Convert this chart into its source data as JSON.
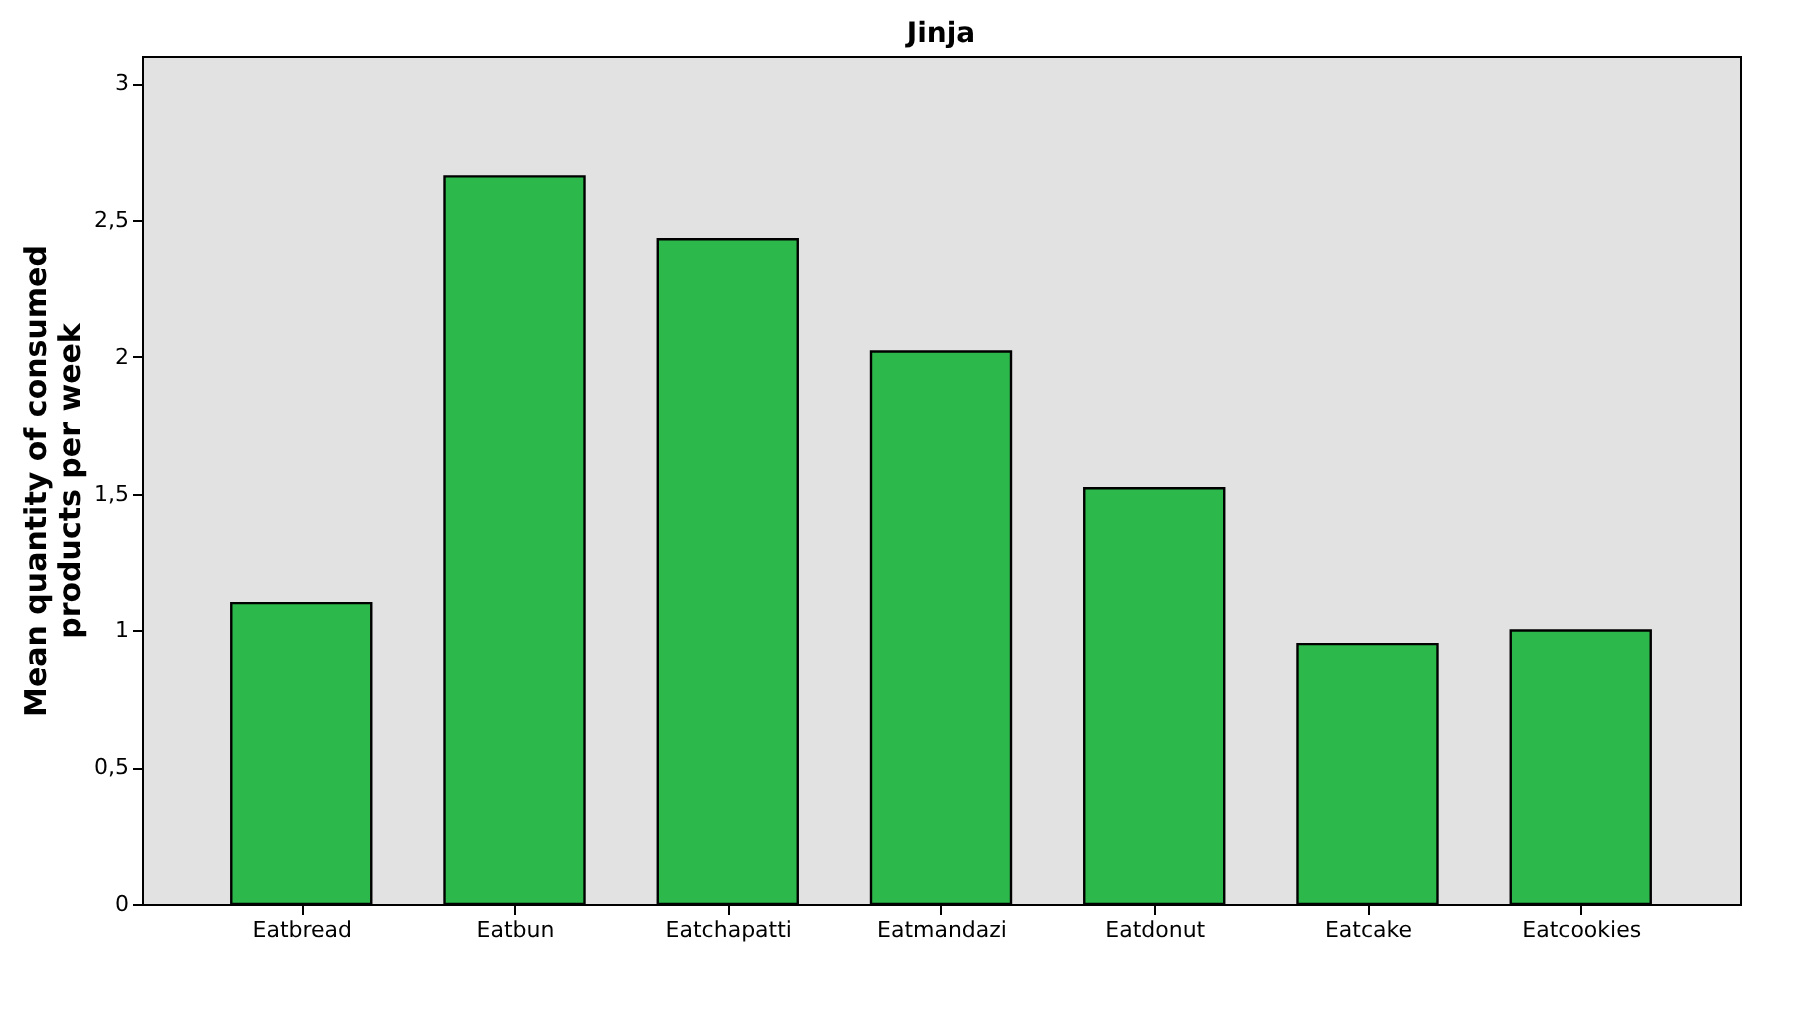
{
  "chart_data": {
    "type": "bar",
    "title": "Jinja",
    "ylabel": "Mean quantity of consumed products per week",
    "categories": [
      "Eatbread",
      "Eatbun",
      "Eatchapatti",
      "Eatmandazi",
      "Eatdonut",
      "Eatcake",
      "Eatcookies"
    ],
    "values": [
      1.1,
      2.66,
      2.43,
      2.02,
      1.52,
      0.95,
      1.0
    ],
    "color": "#2db84b",
    "ylim": [
      0,
      3.1
    ],
    "yticks": [
      0,
      {
        "value": 0.5,
        "label": "0,5"
      },
      1,
      {
        "value": 1.5,
        "label": "1,5"
      },
      2,
      {
        "value": 2.5,
        "label": "2,5"
      },
      3
    ],
    "grid": false
  }
}
